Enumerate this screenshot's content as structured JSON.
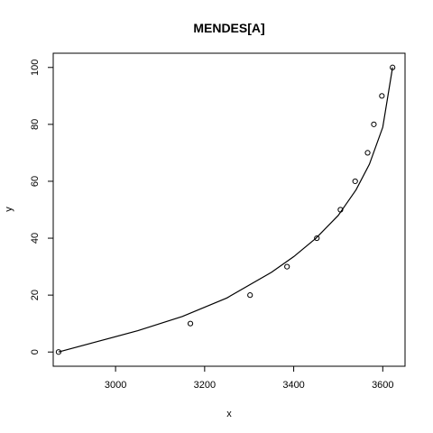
{
  "chart_data": {
    "type": "scatter",
    "title": "MENDES[A]",
    "xlabel": "x",
    "ylabel": "y",
    "xlim": [
      2860,
      3650
    ],
    "ylim": [
      -5,
      105
    ],
    "xticks": [
      3000,
      3200,
      3400,
      3600
    ],
    "yticks": [
      0,
      20,
      40,
      60,
      80,
      100
    ],
    "grid": false,
    "legend": "none",
    "points": {
      "x": [
        2872,
        3168,
        3302,
        3385,
        3452,
        3505,
        3538,
        3566,
        3580,
        3598,
        3622
      ],
      "y": [
        0,
        10,
        20,
        30,
        40,
        50,
        60,
        70,
        80,
        90,
        100
      ]
    },
    "fit_line": {
      "x": [
        2872,
        2950,
        3050,
        3150,
        3250,
        3350,
        3400,
        3450,
        3500,
        3540,
        3570,
        3600,
        3622
      ],
      "y": [
        0,
        3.3,
        7.5,
        12.5,
        19,
        28,
        33.5,
        40,
        48,
        57,
        66,
        79,
        100
      ]
    }
  }
}
